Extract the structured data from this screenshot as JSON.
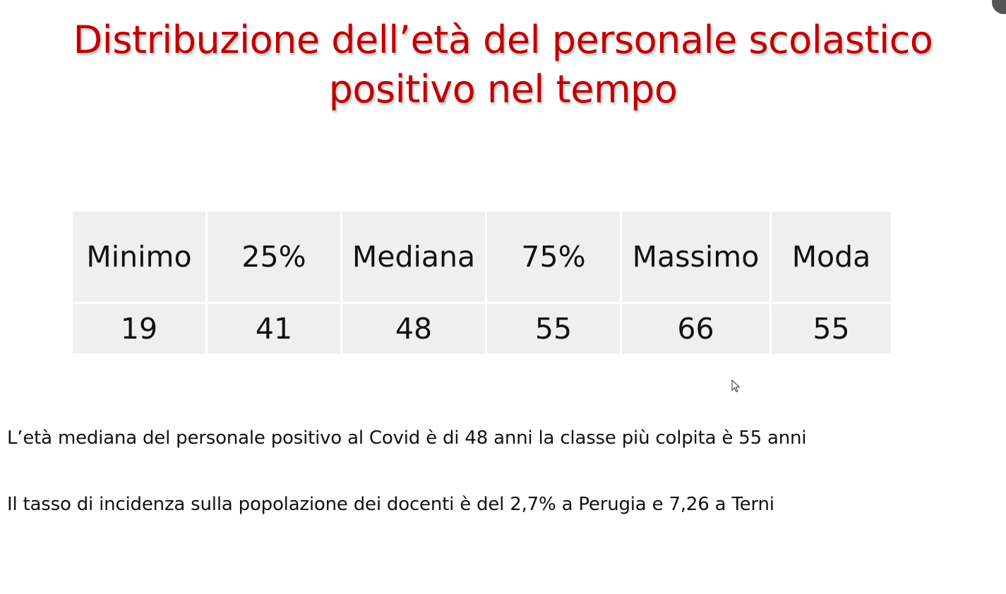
{
  "title": {
    "line1": "Distribuzione dell’età del personale scolastico",
    "line2": "positivo nel tempo",
    "color": "#c00000"
  },
  "stats_table": {
    "headers": [
      "Minimo",
      "25%",
      "Mediana",
      "75%",
      "Massimo",
      "Moda"
    ],
    "values": [
      "19",
      "41",
      "48",
      "55",
      "66",
      "55"
    ]
  },
  "notes": [
    "L’età mediana del personale positivo al Covid è di 48 anni la classe più colpita è 55 anni",
    "Il tasso di incidenza sulla popolazione dei docenti è del 2,7% a Perugia e 7,26 a Terni"
  ],
  "icons": {
    "cursor": "mouse-pointer-icon"
  }
}
